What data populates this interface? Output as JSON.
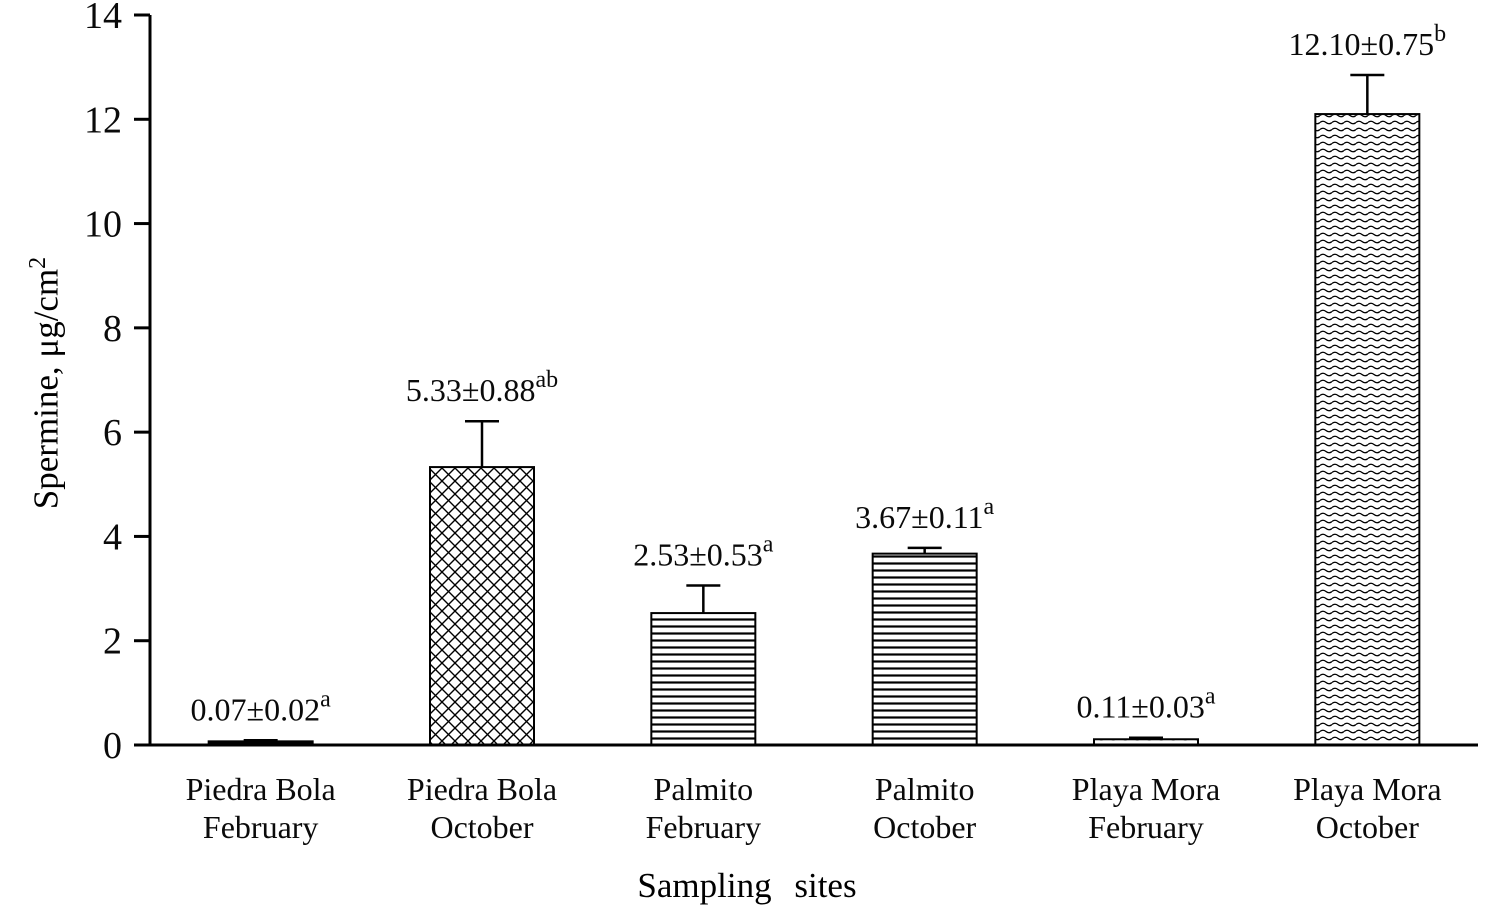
{
  "figure": {
    "xlabel": "Sampling sites",
    "ylabel_main": "Spermine, μg/cm",
    "ylabel_sup": "2"
  },
  "colors": {
    "ink": "#000000",
    "background": "#ffffff"
  },
  "chart_data": {
    "type": "bar",
    "title": "",
    "xlabel": "Sampling sites",
    "ylabel": "Spermine, μg/cm²",
    "ylim": [
      0,
      14
    ],
    "yticks": [
      0,
      2,
      4,
      6,
      8,
      10,
      12,
      14
    ],
    "grid": false,
    "legend": "none",
    "categories": [
      {
        "site": "Piedra Bola",
        "month": "February"
      },
      {
        "site": "Piedra Bola",
        "month": "October"
      },
      {
        "site": "Palmito",
        "month": "February"
      },
      {
        "site": "Palmito",
        "month": "October"
      },
      {
        "site": "Playa Mora",
        "month": "February"
      },
      {
        "site": "Playa Mora",
        "month": "October"
      }
    ],
    "values": [
      0.07,
      5.33,
      2.53,
      3.67,
      0.11,
      12.1
    ],
    "errors": [
      0.02,
      0.88,
      0.53,
      0.11,
      0.03,
      0.75
    ],
    "bar_labels": [
      "0.07±0.02",
      "5.33±0.88",
      "2.53±0.53",
      "3.67±0.11",
      "0.11±0.03",
      "12.10±0.75"
    ],
    "sig_letters": [
      "a",
      "ab",
      "a",
      "a",
      "a",
      "b"
    ],
    "bar_patterns": [
      "solid",
      "crosshatch",
      "hlines",
      "hlines",
      "wave",
      "wave"
    ]
  }
}
